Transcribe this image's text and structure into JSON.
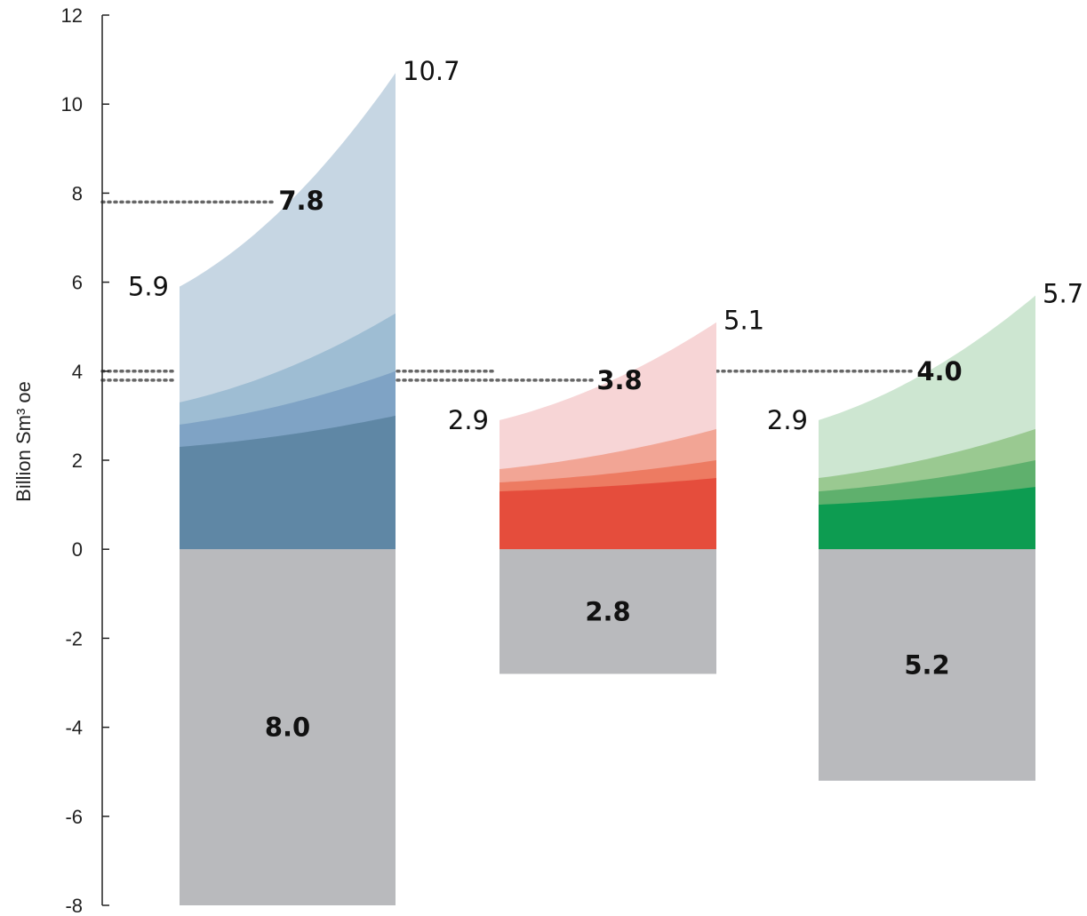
{
  "chart_data": {
    "type": "area",
    "ylabel": "Billion Sm³ oe",
    "ylim": [
      -8,
      12
    ],
    "yticks": [
      -8,
      -6,
      -4,
      -2,
      0,
      2,
      4,
      6,
      8,
      10,
      12
    ],
    "yticks_labels": [
      "-8",
      "-6",
      "-4",
      "-2",
      "0",
      "2",
      "4",
      "6",
      "8",
      "10",
      "12"
    ],
    "grid": false,
    "legend": "none",
    "groups": [
      {
        "start_label": "5.9",
        "end_label": "10.7",
        "mid_label": "7.8",
        "mid_value": 7.8,
        "negative_label": "8.0",
        "negative_value": -8.0,
        "negative_color": "#b9babd",
        "layers": [
          {
            "start": 2.3,
            "end": 3.0,
            "color": "#5f87a5"
          },
          {
            "start": 2.8,
            "end": 4.0,
            "color": "#7fa3c5"
          },
          {
            "start": 3.3,
            "end": 5.3,
            "color": "#9ebdd3"
          },
          {
            "start": 5.9,
            "end": 10.7,
            "color": "#c6d6e3"
          }
        ]
      },
      {
        "start_label": "2.9",
        "end_label": "5.1",
        "mid_label": "3.8",
        "mid_value": 3.8,
        "negative_label": "2.8",
        "negative_value": -2.8,
        "negative_color": "#b9babd",
        "layers": [
          {
            "start": 1.3,
            "end": 1.6,
            "color": "#e54d3c"
          },
          {
            "start": 1.5,
            "end": 2.0,
            "color": "#ed7b62"
          },
          {
            "start": 1.8,
            "end": 2.7,
            "color": "#f2a595"
          },
          {
            "start": 2.9,
            "end": 5.1,
            "color": "#f7d5d6"
          }
        ]
      },
      {
        "start_label": "2.9",
        "end_label": "5.7",
        "mid_label": "4.0",
        "mid_value": 4.0,
        "negative_label": "5.2",
        "negative_value": -5.2,
        "negative_color": "#b9babd",
        "layers": [
          {
            "start": 1.0,
            "end": 1.4,
            "color": "#0d9c51"
          },
          {
            "start": 1.3,
            "end": 2.0,
            "color": "#5fb06d"
          },
          {
            "start": 1.6,
            "end": 2.7,
            "color": "#9ac991"
          },
          {
            "start": 2.9,
            "end": 5.7,
            "color": "#cde6d1"
          }
        ]
      }
    ]
  }
}
